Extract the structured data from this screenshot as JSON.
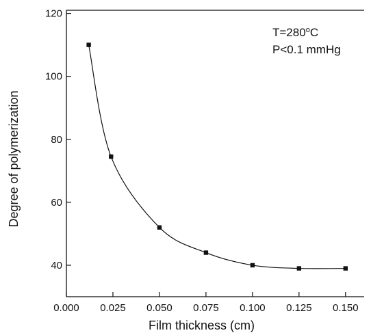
{
  "chart_data": {
    "type": "scatter",
    "title": "",
    "xlabel": "Film thickness (cm)",
    "ylabel": "Degree of polymerization",
    "xlim": [
      0.0,
      0.16
    ],
    "ylim": [
      30,
      121
    ],
    "xticks": [
      0.0,
      0.025,
      0.05,
      0.075,
      0.1,
      0.125,
      0.15
    ],
    "xtick_labels": [
      "0.000",
      "0.025",
      "0.050",
      "0.075",
      "0.100",
      "0.125",
      "0.150"
    ],
    "yticks": [
      40,
      60,
      80,
      100,
      120
    ],
    "ytick_labels": [
      "40",
      "60",
      "80",
      "100",
      "120"
    ],
    "grid": false,
    "series": [
      {
        "x": [
          0.012,
          0.024,
          0.05,
          0.075,
          0.1,
          0.125,
          0.15
        ],
        "y": [
          110,
          74.5,
          52,
          44,
          40,
          39,
          39
        ],
        "marker": "square",
        "fit_line": true
      }
    ],
    "annotations": [
      {
        "text_parts": [
          "T=280",
          "o",
          "C"
        ],
        "position": "top-right"
      },
      {
        "text": "P<0.1 mmHg",
        "position": "top-right"
      }
    ]
  }
}
